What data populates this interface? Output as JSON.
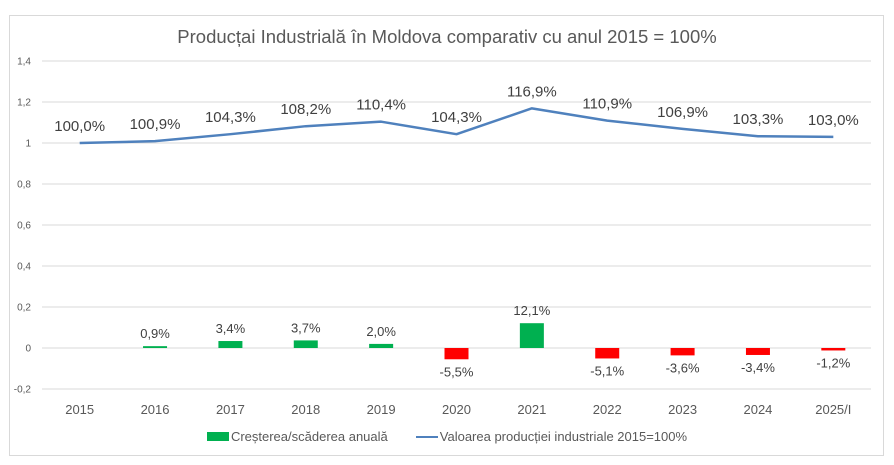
{
  "chart_data": {
    "type": "bar+line",
    "title": "Producțai Industrială în Moldova comparativ cu anul 2015 = 100%",
    "categories": [
      "2015",
      "2016",
      "2017",
      "2018",
      "2019",
      "2020",
      "2021",
      "2022",
      "2023",
      "2024",
      "2025/I"
    ],
    "ylim": [
      -0.2,
      1.4
    ],
    "yticks": [
      -0.2,
      0,
      0.2,
      0.4,
      0.6,
      0.8,
      1,
      1.2,
      1.4
    ],
    "ytick_labels": [
      "-0,2",
      "0",
      "0,2",
      "0,4",
      "0,6",
      "0,8",
      "1",
      "1,2",
      "1,4"
    ],
    "grid": true,
    "legend_position": "bottom",
    "series": [
      {
        "name": "Creșterea/scăderea anuală",
        "type": "bar",
        "positive_color": "#00b050",
        "negative_color": "#ff0000",
        "values": [
          null,
          0.009,
          0.034,
          0.037,
          0.02,
          -0.055,
          0.121,
          -0.051,
          -0.036,
          -0.034,
          -0.012
        ],
        "labels": [
          "",
          "0,9%",
          "3,4%",
          "3,7%",
          "2,0%",
          "-5,5%",
          "12,1%",
          "-5,1%",
          "-3,6%",
          "-3,4%",
          "-1,2%"
        ]
      },
      {
        "name": "Valoarea producției industriale 2015=100%",
        "type": "line",
        "color": "#4f81bd",
        "values": [
          1.0,
          1.009,
          1.043,
          1.082,
          1.104,
          1.043,
          1.169,
          1.109,
          1.069,
          1.033,
          1.03
        ],
        "labels": [
          "100,0%",
          "100,9%",
          "104,3%",
          "108,2%",
          "110,4%",
          "104,3%",
          "116,9%",
          "110,9%",
          "106,9%",
          "103,3%",
          "103,0%"
        ]
      }
    ]
  }
}
